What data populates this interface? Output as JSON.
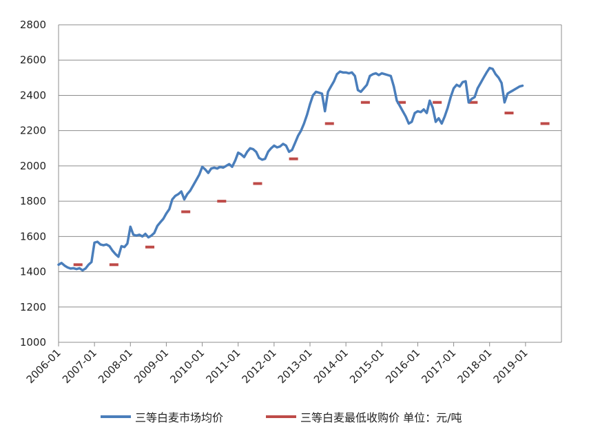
{
  "chart_data": {
    "type": "line",
    "title": "",
    "xlabel": "",
    "ylabel": "",
    "ylim": [
      1000,
      2800
    ],
    "xlim": [
      "2006-01",
      "2019-12"
    ],
    "grid": true,
    "legend_position": "bottom",
    "y_ticks": [
      "1000",
      "1200",
      "1400",
      "1600",
      "1800",
      "2000",
      "2200",
      "2400",
      "2600",
      "2800"
    ],
    "x_ticks": [
      "2006-01",
      "2007-01",
      "2008-01",
      "2009-01",
      "2010-01",
      "2011-01",
      "2012-01",
      "2013-01",
      "2014-01",
      "2015-01",
      "2016-01",
      "2017-01",
      "2018-01",
      "2019-01"
    ],
    "colors": {
      "market": "#4a7ebb",
      "minimum": "#be4b48",
      "grid": "#8c8c8c",
      "axis": "#8c8c8c"
    },
    "series": [
      {
        "name": "三等白麦市场均价",
        "style": "line",
        "points": [
          [
            "2006-01-01",
            1440
          ],
          [
            "2006-02-01",
            1450
          ],
          [
            "2006-03-01",
            1435
          ],
          [
            "2006-04-01",
            1425
          ],
          [
            "2006-05-01",
            1418
          ],
          [
            "2006-06-01",
            1420
          ],
          [
            "2006-07-01",
            1415
          ],
          [
            "2006-08-01",
            1420
          ],
          [
            "2006-09-01",
            1408
          ],
          [
            "2006-10-01",
            1418
          ],
          [
            "2006-11-01",
            1440
          ],
          [
            "2006-12-01",
            1455
          ],
          [
            "2007-01-01",
            1565
          ],
          [
            "2007-02-01",
            1570
          ],
          [
            "2007-03-01",
            1555
          ],
          [
            "2007-04-01",
            1550
          ],
          [
            "2007-05-01",
            1555
          ],
          [
            "2007-06-01",
            1545
          ],
          [
            "2007-07-01",
            1520
          ],
          [
            "2007-08-01",
            1500
          ],
          [
            "2007-09-01",
            1485
          ],
          [
            "2007-10-01",
            1545
          ],
          [
            "2007-11-01",
            1540
          ],
          [
            "2007-12-01",
            1560
          ],
          [
            "2008-01-01",
            1655
          ],
          [
            "2008-02-01",
            1610
          ],
          [
            "2008-03-01",
            1605
          ],
          [
            "2008-04-01",
            1610
          ],
          [
            "2008-05-01",
            1600
          ],
          [
            "2008-06-01",
            1615
          ],
          [
            "2008-07-01",
            1595
          ],
          [
            "2008-08-01",
            1605
          ],
          [
            "2008-09-01",
            1620
          ],
          [
            "2008-10-01",
            1660
          ],
          [
            "2008-11-01",
            1680
          ],
          [
            "2008-12-01",
            1700
          ],
          [
            "2009-01-01",
            1730
          ],
          [
            "2009-02-01",
            1755
          ],
          [
            "2009-03-01",
            1810
          ],
          [
            "2009-04-01",
            1830
          ],
          [
            "2009-05-01",
            1840
          ],
          [
            "2009-06-01",
            1855
          ],
          [
            "2009-07-01",
            1810
          ],
          [
            "2009-08-01",
            1840
          ],
          [
            "2009-09-01",
            1860
          ],
          [
            "2009-10-01",
            1890
          ],
          [
            "2009-11-01",
            1920
          ],
          [
            "2009-12-01",
            1950
          ],
          [
            "2010-01-01",
            1995
          ],
          [
            "2010-02-01",
            1980
          ],
          [
            "2010-03-01",
            1960
          ],
          [
            "2010-04-01",
            1985
          ],
          [
            "2010-05-01",
            1990
          ],
          [
            "2010-06-01",
            1985
          ],
          [
            "2010-07-01",
            1995
          ],
          [
            "2010-08-01",
            1990
          ],
          [
            "2010-09-01",
            2000
          ],
          [
            "2010-10-01",
            2010
          ],
          [
            "2010-11-01",
            1995
          ],
          [
            "2010-12-01",
            2030
          ],
          [
            "2011-01-01",
            2075
          ],
          [
            "2011-02-01",
            2065
          ],
          [
            "2011-03-01",
            2050
          ],
          [
            "2011-04-01",
            2080
          ],
          [
            "2011-05-01",
            2100
          ],
          [
            "2011-06-01",
            2095
          ],
          [
            "2011-07-01",
            2080
          ],
          [
            "2011-08-01",
            2045
          ],
          [
            "2011-09-01",
            2035
          ],
          [
            "2011-10-01",
            2040
          ],
          [
            "2011-11-01",
            2080
          ],
          [
            "2011-12-01",
            2100
          ],
          [
            "2012-01-01",
            2115
          ],
          [
            "2012-02-01",
            2105
          ],
          [
            "2012-03-01",
            2110
          ],
          [
            "2012-04-01",
            2125
          ],
          [
            "2012-05-01",
            2115
          ],
          [
            "2012-06-01",
            2080
          ],
          [
            "2012-07-01",
            2090
          ],
          [
            "2012-08-01",
            2130
          ],
          [
            "2012-09-01",
            2170
          ],
          [
            "2012-10-01",
            2200
          ],
          [
            "2012-11-01",
            2240
          ],
          [
            "2012-12-01",
            2290
          ],
          [
            "2013-01-01",
            2350
          ],
          [
            "2013-02-01",
            2400
          ],
          [
            "2013-03-01",
            2420
          ],
          [
            "2013-04-01",
            2415
          ],
          [
            "2013-05-01",
            2410
          ],
          [
            "2013-06-01",
            2310
          ],
          [
            "2013-07-01",
            2420
          ],
          [
            "2013-08-01",
            2450
          ],
          [
            "2013-09-01",
            2480
          ],
          [
            "2013-10-01",
            2520
          ],
          [
            "2013-11-01",
            2535
          ],
          [
            "2013-12-01",
            2530
          ],
          [
            "2014-01-01",
            2530
          ],
          [
            "2014-02-01",
            2525
          ],
          [
            "2014-03-01",
            2530
          ],
          [
            "2014-04-01",
            2510
          ],
          [
            "2014-05-01",
            2430
          ],
          [
            "2014-06-01",
            2420
          ],
          [
            "2014-07-01",
            2440
          ],
          [
            "2014-08-01",
            2460
          ],
          [
            "2014-09-01",
            2510
          ],
          [
            "2014-10-01",
            2520
          ],
          [
            "2014-11-01",
            2525
          ],
          [
            "2014-12-01",
            2515
          ],
          [
            "2015-01-01",
            2525
          ],
          [
            "2015-02-01",
            2520
          ],
          [
            "2015-03-01",
            2515
          ],
          [
            "2015-04-01",
            2510
          ],
          [
            "2015-05-01",
            2450
          ],
          [
            "2015-06-01",
            2370
          ],
          [
            "2015-07-01",
            2340
          ],
          [
            "2015-08-01",
            2310
          ],
          [
            "2015-09-01",
            2280
          ],
          [
            "2015-10-01",
            2240
          ],
          [
            "2015-11-01",
            2250
          ],
          [
            "2015-12-01",
            2300
          ],
          [
            "2016-01-01",
            2310
          ],
          [
            "2016-02-01",
            2305
          ],
          [
            "2016-03-01",
            2320
          ],
          [
            "2016-04-01",
            2300
          ],
          [
            "2016-05-01",
            2370
          ],
          [
            "2016-06-01",
            2330
          ],
          [
            "2016-07-01",
            2250
          ],
          [
            "2016-08-01",
            2270
          ],
          [
            "2016-09-01",
            2240
          ],
          [
            "2016-10-01",
            2280
          ],
          [
            "2016-11-01",
            2330
          ],
          [
            "2016-12-01",
            2390
          ],
          [
            "2017-01-01",
            2440
          ],
          [
            "2017-02-01",
            2460
          ],
          [
            "2017-03-01",
            2450
          ],
          [
            "2017-04-01",
            2475
          ],
          [
            "2017-05-01",
            2480
          ],
          [
            "2017-06-01",
            2360
          ],
          [
            "2017-07-01",
            2380
          ],
          [
            "2017-08-01",
            2390
          ],
          [
            "2017-09-01",
            2440
          ],
          [
            "2017-10-01",
            2470
          ],
          [
            "2017-11-01",
            2500
          ],
          [
            "2017-12-01",
            2530
          ],
          [
            "2018-01-01",
            2555
          ],
          [
            "2018-02-01",
            2550
          ],
          [
            "2018-03-01",
            2520
          ],
          [
            "2018-04-01",
            2500
          ],
          [
            "2018-05-01",
            2470
          ],
          [
            "2018-06-01",
            2360
          ],
          [
            "2018-07-01",
            2410
          ],
          [
            "2018-08-01",
            2420
          ],
          [
            "2018-09-01",
            2430
          ],
          [
            "2018-10-01",
            2440
          ],
          [
            "2018-11-01",
            2450
          ],
          [
            "2018-12-01",
            2455
          ]
        ]
      },
      {
        "name": "三等白麦最低收购价",
        "style": "segments",
        "segments": [
          {
            "from": "2006-06",
            "to": "2006-09",
            "value": 1440
          },
          {
            "from": "2007-06",
            "to": "2007-09",
            "value": 1440
          },
          {
            "from": "2008-06",
            "to": "2008-09",
            "value": 1540
          },
          {
            "from": "2009-06",
            "to": "2009-09",
            "value": 1740
          },
          {
            "from": "2010-06",
            "to": "2010-09",
            "value": 1800
          },
          {
            "from": "2011-06",
            "to": "2011-09",
            "value": 1900
          },
          {
            "from": "2012-06",
            "to": "2012-09",
            "value": 2040
          },
          {
            "from": "2013-06",
            "to": "2013-09",
            "value": 2240
          },
          {
            "from": "2014-06",
            "to": "2014-09",
            "value": 2360
          },
          {
            "from": "2015-06",
            "to": "2015-09",
            "value": 2360
          },
          {
            "from": "2016-06",
            "to": "2016-09",
            "value": 2360
          },
          {
            "from": "2017-06",
            "to": "2017-09",
            "value": 2360
          },
          {
            "from": "2018-06",
            "to": "2018-09",
            "value": 2300
          },
          {
            "from": "2019-06",
            "to": "2019-09",
            "value": 2240
          }
        ]
      }
    ],
    "legend": {
      "market_label": "三等白麦市场均价",
      "minimum_label": "三等白麦最低收购价 单位：元/吨"
    }
  }
}
